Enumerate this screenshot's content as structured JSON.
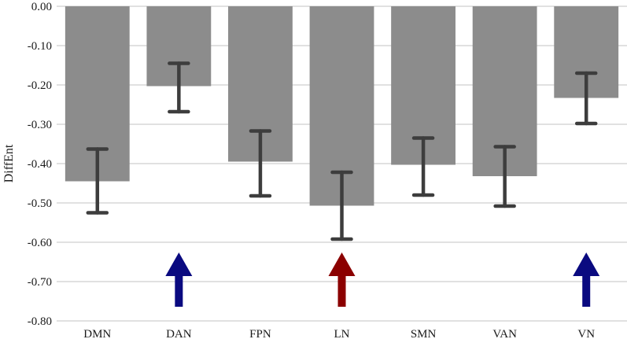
{
  "chart_data": {
    "type": "bar",
    "categories": [
      "DMN",
      "DAN",
      "FPN",
      "LN",
      "SMN",
      "VAN",
      "VN"
    ],
    "values": [
      -0.445,
      -0.203,
      -0.395,
      -0.507,
      -0.403,
      -0.432,
      -0.233
    ],
    "error_low": [
      -0.525,
      -0.268,
      -0.482,
      -0.592,
      -0.48,
      -0.508,
      -0.298
    ],
    "error_high": [
      -0.363,
      -0.145,
      -0.317,
      -0.422,
      -0.335,
      -0.357,
      -0.17
    ],
    "xlabel": "",
    "ylabel": "DiffEnt",
    "ylim": [
      -0.8,
      0.0
    ],
    "yticks": [
      0.0,
      -0.1,
      -0.2,
      -0.3,
      -0.4,
      -0.5,
      -0.6,
      -0.7,
      -0.8
    ],
    "ytick_labels": [
      "0.00",
      "-0.10",
      "-0.20",
      "-0.30",
      "-0.40",
      "-0.50",
      "-0.60",
      "-0.70",
      "-0.80"
    ],
    "grid": true,
    "bar_color": "#8c8c8c",
    "errorbar_color": "#3d3d3d",
    "arrows": [
      {
        "category": "DAN",
        "direction": "up",
        "color": "#0a0a80"
      },
      {
        "category": "LN",
        "direction": "up",
        "color": "#8b0000"
      },
      {
        "category": "VN",
        "direction": "up",
        "color": "#0a0a80"
      }
    ]
  }
}
